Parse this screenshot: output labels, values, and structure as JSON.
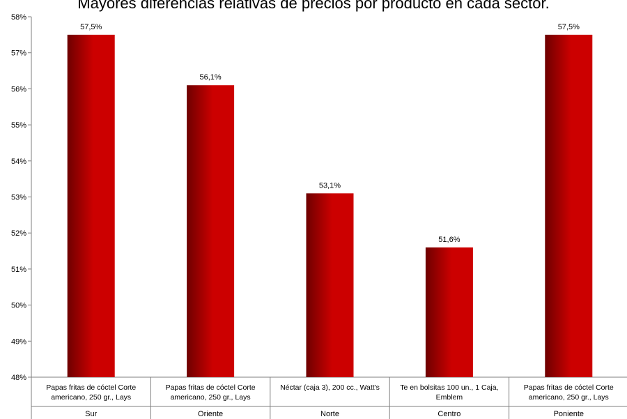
{
  "chart_data": {
    "type": "bar",
    "title": "Mayores diferencias relativas de precios por producto en cada sector.",
    "xlabel": "",
    "ylabel": "",
    "ylim": [
      0.48,
      0.58
    ],
    "yticks": [
      "48%",
      "49%",
      "50%",
      "51%",
      "52%",
      "53%",
      "54%",
      "55%",
      "56%",
      "57%",
      "58%"
    ],
    "categories": [
      {
        "product": [
          "Papas fritas de cóctel Corte",
          "americano, 250 gr., Lays"
        ],
        "sector": "Sur"
      },
      {
        "product": [
          "Papas fritas de cóctel Corte",
          "americano, 250 gr., Lays"
        ],
        "sector": "Oriente"
      },
      {
        "product": [
          "Néctar (caja 3), 200 cc., Watt's"
        ],
        "sector": "Norte"
      },
      {
        "product": [
          "Te en bolsitas 100 un., 1 Caja,",
          "Emblem"
        ],
        "sector": "Centro"
      },
      {
        "product": [
          "Papas fritas de cóctel Corte",
          "americano, 250 gr., Lays"
        ],
        "sector": "Poniente"
      }
    ],
    "values": [
      0.575,
      0.561,
      0.531,
      0.516,
      0.575
    ],
    "data_labels": [
      "57,5%",
      "56,1%",
      "53,1%",
      "51,6%",
      "57,5%"
    ],
    "legend": "none",
    "grid": false,
    "colors": {
      "bar_dark": "#6e0000",
      "bar_light": "#cc0000",
      "axis": "#7f7f7f"
    }
  }
}
